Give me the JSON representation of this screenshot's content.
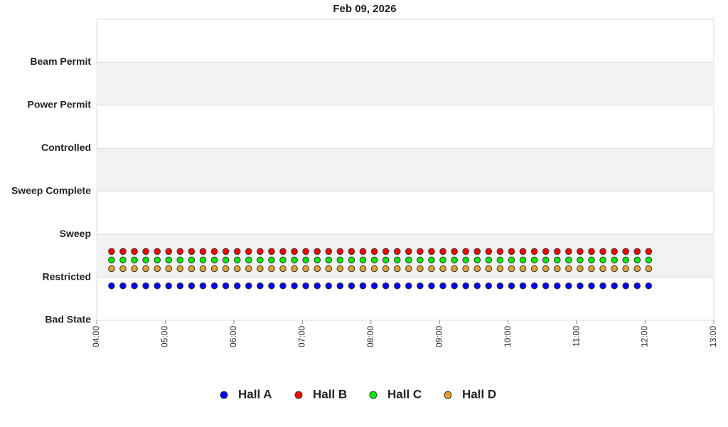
{
  "chart_data": {
    "type": "scatter",
    "title": "Feb 09, 2026",
    "x": [
      "04:13",
      "04:23",
      "04:33",
      "04:43",
      "04:53",
      "05:03",
      "05:13",
      "05:23",
      "05:33",
      "05:43",
      "05:53",
      "06:03",
      "06:13",
      "06:23",
      "06:33",
      "06:43",
      "06:53",
      "07:03",
      "07:13",
      "07:23",
      "07:33",
      "07:43",
      "07:53",
      "08:03",
      "08:13",
      "08:23",
      "08:33",
      "08:43",
      "08:53",
      "09:03",
      "09:13",
      "09:23",
      "09:33",
      "09:43",
      "09:53",
      "10:03",
      "10:13",
      "10:23",
      "10:33",
      "10:43",
      "10:53",
      "11:03",
      "11:13",
      "11:23",
      "11:33",
      "11:43",
      "11:53",
      "12:03"
    ],
    "xlim": [
      "04:00",
      "13:00"
    ],
    "xticks": [
      "04:00",
      "05:00",
      "06:00",
      "07:00",
      "08:00",
      "09:00",
      "10:00",
      "11:00",
      "12:00",
      "13:00"
    ],
    "ylim": [
      0,
      7
    ],
    "yticks": [
      {
        "value": 0,
        "label": "Bad State"
      },
      {
        "value": 1,
        "label": "Restricted"
      },
      {
        "value": 2,
        "label": "Sweep"
      },
      {
        "value": 3,
        "label": "Sweep Complete"
      },
      {
        "value": 4,
        "label": "Controlled"
      },
      {
        "value": 5,
        "label": "Power Permit"
      },
      {
        "value": 6,
        "label": "Beam Permit"
      }
    ],
    "grid": true,
    "series": [
      {
        "name": "Hall A",
        "color": "#0000ff",
        "values": [
          0.8,
          0.8,
          0.8,
          0.8,
          0.8,
          0.8,
          0.8,
          0.8,
          0.8,
          0.8,
          0.8,
          0.8,
          0.8,
          0.8,
          0.8,
          0.8,
          0.8,
          0.8,
          0.8,
          0.8,
          0.8,
          0.8,
          0.8,
          0.8,
          0.8,
          0.8,
          0.8,
          0.8,
          0.8,
          0.8,
          0.8,
          0.8,
          0.8,
          0.8,
          0.8,
          0.8,
          0.8,
          0.8,
          0.8,
          0.8,
          0.8,
          0.8,
          0.8,
          0.8,
          0.8,
          0.8,
          0.8,
          0.8
        ]
      },
      {
        "name": "Hall B",
        "color": "#ff0000",
        "values": [
          1.6,
          1.6,
          1.6,
          1.6,
          1.6,
          1.6,
          1.6,
          1.6,
          1.6,
          1.6,
          1.6,
          1.6,
          1.6,
          1.6,
          1.6,
          1.6,
          1.6,
          1.6,
          1.6,
          1.6,
          1.6,
          1.6,
          1.6,
          1.6,
          1.6,
          1.6,
          1.6,
          1.6,
          1.6,
          1.6,
          1.6,
          1.6,
          1.6,
          1.6,
          1.6,
          1.6,
          1.6,
          1.6,
          1.6,
          1.6,
          1.6,
          1.6,
          1.6,
          1.6,
          1.6,
          1.6,
          1.6,
          1.6
        ]
      },
      {
        "name": "Hall C",
        "color": "#00ee00",
        "values": [
          1.4,
          1.4,
          1.4,
          1.4,
          1.4,
          1.4,
          1.4,
          1.4,
          1.4,
          1.4,
          1.4,
          1.4,
          1.4,
          1.4,
          1.4,
          1.4,
          1.4,
          1.4,
          1.4,
          1.4,
          1.4,
          1.4,
          1.4,
          1.4,
          1.4,
          1.4,
          1.4,
          1.4,
          1.4,
          1.4,
          1.4,
          1.4,
          1.4,
          1.4,
          1.4,
          1.4,
          1.4,
          1.4,
          1.4,
          1.4,
          1.4,
          1.4,
          1.4,
          1.4,
          1.4,
          1.4,
          1.4,
          1.4
        ]
      },
      {
        "name": "Hall D",
        "color": "#e0a030",
        "values": [
          1.2,
          1.2,
          1.2,
          1.2,
          1.2,
          1.2,
          1.2,
          1.2,
          1.2,
          1.2,
          1.2,
          1.2,
          1.2,
          1.2,
          1.2,
          1.2,
          1.2,
          1.2,
          1.2,
          1.2,
          1.2,
          1.2,
          1.2,
          1.2,
          1.2,
          1.2,
          1.2,
          1.2,
          1.2,
          1.2,
          1.2,
          1.2,
          1.2,
          1.2,
          1.2,
          1.2,
          1.2,
          1.2,
          1.2,
          1.2,
          1.2,
          1.2,
          1.2,
          1.2,
          1.2,
          1.2,
          1.2,
          1.2
        ]
      }
    ]
  }
}
